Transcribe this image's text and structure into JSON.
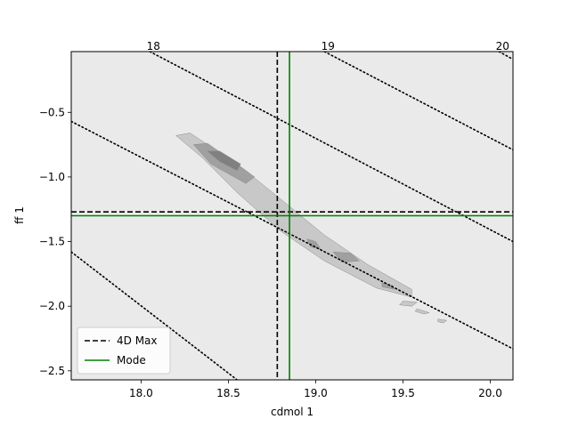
{
  "chart_data": {
    "type": "contour",
    "title": "",
    "xlabel": "cdmol 1",
    "ylabel": "ff 1",
    "xlim": [
      17.6,
      20.13
    ],
    "ylim": [
      -2.57,
      -0.03
    ],
    "x_ticks": [
      {
        "value": 18.0,
        "label": "18.0"
      },
      {
        "value": 18.5,
        "label": "18.5"
      },
      {
        "value": 19.0,
        "label": "19.0"
      },
      {
        "value": 19.5,
        "label": "19.5"
      },
      {
        "value": 20.0,
        "label": "20.0"
      }
    ],
    "y_ticks": [
      {
        "value": -0.5,
        "label": "−0.5"
      },
      {
        "value": -1.0,
        "label": "−1.0"
      },
      {
        "value": -1.5,
        "label": "−1.5"
      },
      {
        "value": -2.0,
        "label": "−2.0"
      },
      {
        "value": -2.5,
        "label": "−2.5"
      }
    ],
    "diagonal_lines": [
      {
        "label": "18",
        "points": [
          [
            18.05,
            -0.03
          ],
          [
            20.13,
            -1.5
          ]
        ]
      },
      {
        "label": "19",
        "points": [
          [
            19.05,
            -0.03
          ],
          [
            20.13,
            -0.79
          ]
        ]
      },
      {
        "label": "20",
        "points": [
          [
            20.05,
            -0.03
          ],
          [
            20.13,
            -0.09
          ]
        ]
      },
      {
        "label": "",
        "points": [
          [
            17.6,
            -0.57
          ],
          [
            20.13,
            -2.33
          ]
        ]
      },
      {
        "label": "",
        "points": [
          [
            17.6,
            -1.58
          ],
          [
            18.55,
            -2.57
          ]
        ]
      }
    ],
    "reference_lines": [
      {
        "name": "4D Max",
        "x": 18.78,
        "y": -1.27,
        "color": "#000000",
        "style": "dashed"
      },
      {
        "name": "Mode",
        "x": 18.85,
        "y": -1.3,
        "color": "#008000",
        "style": "solid"
      }
    ],
    "contour_levels": [
      {
        "color": "#c8c8c8",
        "region": [
          [
            18.2,
            -0.68
          ],
          [
            18.28,
            -0.66
          ],
          [
            18.55,
            -0.9
          ],
          [
            18.78,
            -1.15
          ],
          [
            19.05,
            -1.45
          ],
          [
            19.3,
            -1.68
          ],
          [
            19.55,
            -1.87
          ],
          [
            19.55,
            -1.93
          ],
          [
            19.35,
            -1.86
          ],
          [
            19.05,
            -1.65
          ],
          [
            18.8,
            -1.42
          ],
          [
            18.55,
            -1.12
          ],
          [
            18.35,
            -0.85
          ]
        ]
      },
      {
        "color": "#a0a0a0",
        "region": [
          [
            18.3,
            -0.75
          ],
          [
            18.38,
            -0.74
          ],
          [
            18.55,
            -0.9
          ],
          [
            18.65,
            -1.0
          ],
          [
            18.6,
            -1.05
          ],
          [
            18.4,
            -0.9
          ]
        ]
      },
      {
        "color": "#808080",
        "region": [
          [
            18.38,
            -0.8
          ],
          [
            18.45,
            -0.8
          ],
          [
            18.57,
            -0.9
          ],
          [
            18.55,
            -0.95
          ],
          [
            18.45,
            -0.88
          ]
        ]
      },
      {
        "color": "#a0a0a0",
        "region": [
          [
            19.1,
            -1.58
          ],
          [
            19.2,
            -1.59
          ],
          [
            19.25,
            -1.65
          ],
          [
            19.15,
            -1.66
          ]
        ]
      },
      {
        "color": "#a0a0a0",
        "region": [
          [
            18.95,
            -1.48
          ],
          [
            19.0,
            -1.5
          ],
          [
            19.03,
            -1.56
          ],
          [
            18.97,
            -1.54
          ]
        ]
      },
      {
        "color": "#a0a0a0",
        "region": [
          [
            19.38,
            -1.82
          ],
          [
            19.44,
            -1.84
          ],
          [
            19.45,
            -1.87
          ],
          [
            19.38,
            -1.85
          ]
        ]
      },
      {
        "color": "#c8c8c8",
        "region": [
          [
            19.5,
            -1.96
          ],
          [
            19.58,
            -1.97
          ],
          [
            19.55,
            -2.0
          ],
          [
            19.48,
            -1.99
          ]
        ]
      },
      {
        "color": "#c8c8c8",
        "region": [
          [
            19.58,
            -2.02
          ],
          [
            19.65,
            -2.05
          ],
          [
            19.62,
            -2.06
          ],
          [
            19.57,
            -2.04
          ]
        ]
      },
      {
        "color": "#c8c8c8",
        "region": [
          [
            19.7,
            -2.1
          ],
          [
            19.75,
            -2.11
          ],
          [
            19.73,
            -2.13
          ],
          [
            19.7,
            -2.12
          ]
        ]
      }
    ],
    "legend": {
      "placement": "lower-left",
      "entries": [
        "4D Max",
        "Mode"
      ]
    },
    "grid": false
  }
}
